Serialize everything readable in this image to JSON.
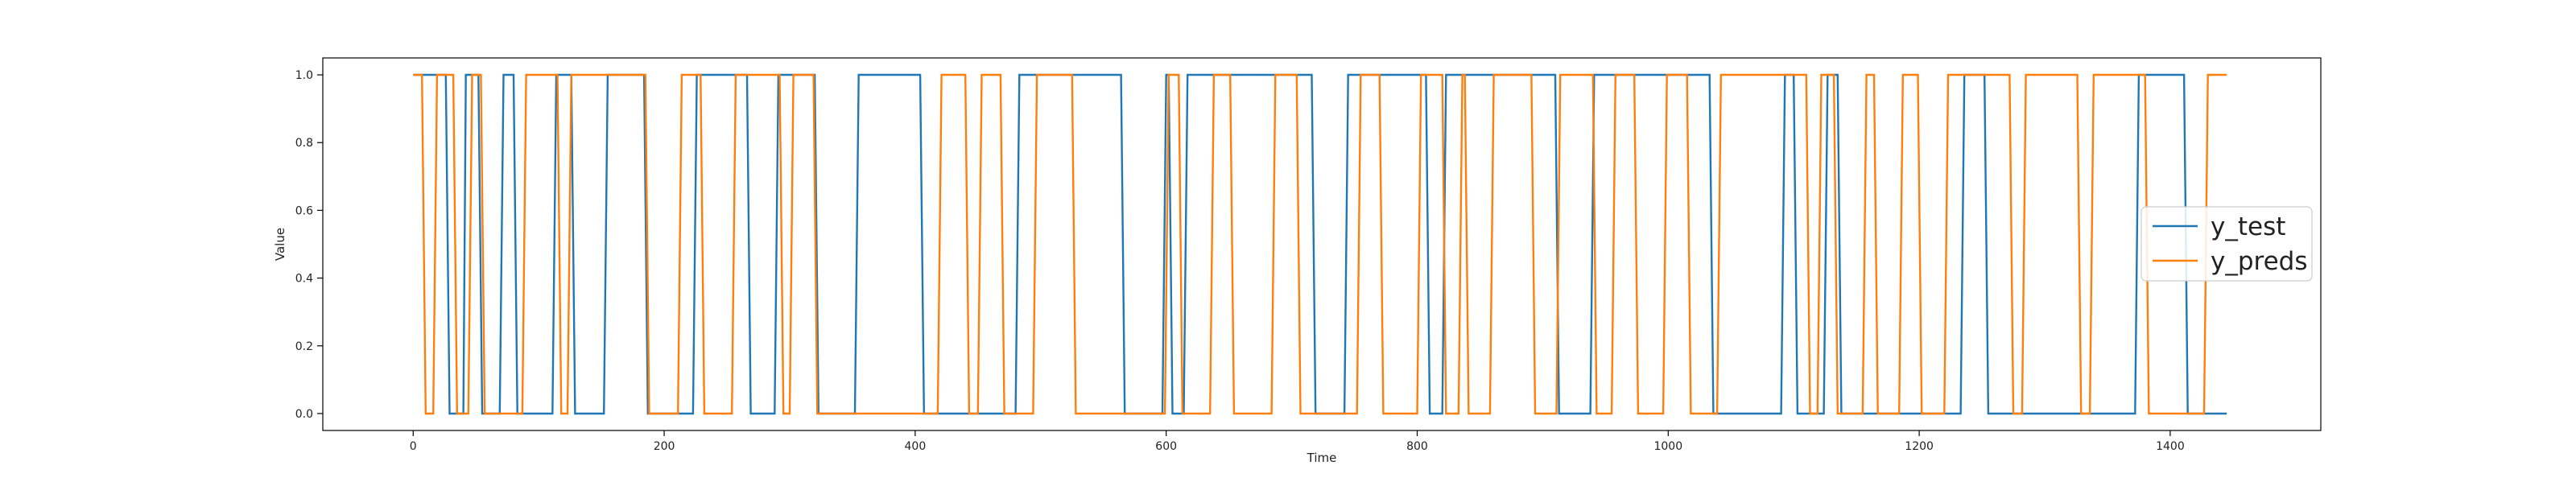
{
  "chart_data": {
    "type": "line",
    "title": "",
    "xlabel": "Time",
    "ylabel": "Value",
    "xlim": [
      -72,
      1520
    ],
    "ylim": [
      -0.05,
      1.05
    ],
    "x_ticks": [
      0,
      200,
      400,
      600,
      800,
      1000,
      1200,
      1400
    ],
    "x_tick_labels": [
      "0",
      "200",
      "400",
      "600",
      "800",
      "1000",
      "1200",
      "1400"
    ],
    "y_ticks": [
      0,
      0.2,
      0.4,
      0.6,
      0.8,
      1
    ],
    "y_tick_labels": [
      "0.0",
      "0.2",
      "0.4",
      "0.6",
      "0.8",
      "1.0"
    ],
    "grid": false,
    "legend_position": "center-right",
    "legend": [
      "y_test",
      "y_preds"
    ],
    "series": [
      {
        "name": "y_test",
        "color": "#1f77b4",
        "x": [
          0,
          26,
          29,
          40,
          42,
          52,
          55,
          69,
          72,
          80,
          83,
          111,
          114,
          126,
          129,
          152,
          155,
          184,
          187,
          223,
          226,
          266,
          269,
          288,
          291,
          320,
          323,
          352,
          355,
          404,
          407,
          480,
          483,
          564,
          567,
          597,
          600,
          602,
          605,
          614,
          617,
          716,
          719,
          742,
          745,
          807,
          810,
          820,
          823,
          910,
          913,
          938,
          941,
          1033,
          1036,
          1090,
          1093,
          1100,
          1103,
          1124,
          1127,
          1135,
          1138,
          1233,
          1236,
          1252,
          1255,
          1372,
          1375,
          1411,
          1414,
          1445
        ],
        "y": [
          1,
          1,
          0,
          0,
          1,
          1,
          0,
          0,
          1,
          1,
          0,
          0,
          1,
          1,
          0,
          0,
          1,
          1,
          0,
          0,
          1,
          1,
          0,
          0,
          1,
          1,
          0,
          0,
          1,
          1,
          0,
          0,
          1,
          1,
          0,
          0,
          1,
          1,
          0,
          0,
          1,
          1,
          0,
          0,
          1,
          1,
          0,
          0,
          1,
          1,
          0,
          0,
          1,
          1,
          0,
          0,
          1,
          1,
          0,
          0,
          1,
          1,
          0,
          0,
          1,
          1,
          0,
          0,
          1,
          1,
          0,
          0
        ]
      },
      {
        "name": "y_preds",
        "color": "#ff7f0e",
        "x": [
          0,
          7,
          10,
          16,
          19,
          32,
          35,
          44,
          47,
          54,
          57,
          87,
          90,
          115,
          118,
          123,
          126,
          185,
          188,
          211,
          214,
          229,
          232,
          254,
          257,
          292,
          295,
          300,
          303,
          319,
          322,
          418,
          421,
          440,
          443,
          450,
          453,
          468,
          471,
          494,
          497,
          525,
          528,
          599,
          602,
          610,
          613,
          635,
          638,
          651,
          654,
          684,
          687,
          704,
          707,
          752,
          755,
          770,
          773,
          800,
          803,
          820,
          823,
          833,
          836,
          838,
          841,
          858,
          861,
          891,
          894,
          911,
          914,
          940,
          943,
          955,
          958,
          973,
          976,
          996,
          999,
          1015,
          1018,
          1039,
          1042,
          1110,
          1113,
          1119,
          1122,
          1132,
          1135,
          1155,
          1158,
          1164,
          1167,
          1184,
          1187,
          1199,
          1202,
          1220,
          1223,
          1272,
          1275,
          1282,
          1285,
          1326,
          1329,
          1336,
          1339,
          1380,
          1383,
          1427,
          1430,
          1445
        ],
        "y": [
          1,
          1,
          0,
          0,
          1,
          1,
          0,
          0,
          1,
          1,
          0,
          0,
          1,
          1,
          0,
          0,
          1,
          1,
          0,
          0,
          1,
          1,
          0,
          0,
          1,
          1,
          0,
          0,
          1,
          1,
          0,
          0,
          1,
          1,
          0,
          0,
          1,
          1,
          0,
          0,
          1,
          1,
          0,
          0,
          1,
          1,
          0,
          0,
          1,
          1,
          0,
          0,
          1,
          1,
          0,
          0,
          1,
          1,
          0,
          0,
          1,
          1,
          0,
          0,
          1,
          1,
          0,
          0,
          1,
          1,
          0,
          0,
          1,
          1,
          0,
          0,
          1,
          1,
          0,
          0,
          1,
          1,
          0,
          0,
          1,
          1,
          0,
          0,
          1,
          1,
          0,
          0,
          1,
          1,
          0,
          0,
          1,
          1,
          0,
          0,
          1,
          1,
          0,
          0,
          1,
          1,
          0,
          0,
          1,
          1,
          0,
          0,
          1,
          1
        ]
      }
    ]
  }
}
